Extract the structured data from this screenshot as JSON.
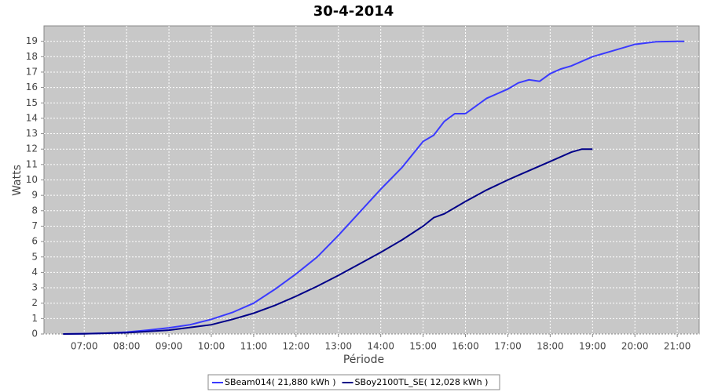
{
  "chart_data": {
    "type": "line",
    "title": "30-4-2014",
    "x_label": "Période",
    "y_label": "Watts",
    "xlim": [
      "06:03",
      "21:31"
    ],
    "xticks": [
      "07:00",
      "08:00",
      "09:00",
      "10:00",
      "11:00",
      "12:00",
      "13:00",
      "14:00",
      "15:00",
      "16:00",
      "17:00",
      "18:00",
      "19:00",
      "20:00",
      "21:00"
    ],
    "ylim": [
      0,
      20
    ],
    "yticks": [
      0,
      1,
      2,
      3,
      4,
      5,
      6,
      7,
      8,
      9,
      10,
      11,
      12,
      13,
      14,
      15,
      16,
      17,
      18,
      19
    ],
    "grid": true,
    "legend": "bottom",
    "series": [
      {
        "name": "SBeam014( 21,880 kWh )",
        "color": "#3a3aff",
        "x": [
          "06:30",
          "07:00",
          "07:30",
          "08:00",
          "08:30",
          "09:00",
          "09:30",
          "10:00",
          "10:30",
          "11:00",
          "11:30",
          "12:00",
          "12:30",
          "13:00",
          "13:30",
          "14:00",
          "14:30",
          "15:00",
          "15:15",
          "15:30",
          "15:45",
          "16:00",
          "16:30",
          "17:00",
          "17:15",
          "17:30",
          "17:45",
          "18:00",
          "18:15",
          "18:30",
          "19:00",
          "19:30",
          "20:00",
          "20:30",
          "21:00",
          "21:10"
        ],
        "values": [
          0,
          0.02,
          0.05,
          0.12,
          0.25,
          0.4,
          0.6,
          0.95,
          1.4,
          2.0,
          2.9,
          3.9,
          5.0,
          6.4,
          7.9,
          9.4,
          10.8,
          12.5,
          12.9,
          13.8,
          14.3,
          14.3,
          15.3,
          15.9,
          16.3,
          16.5,
          16.4,
          16.9,
          17.2,
          17.4,
          18.0,
          18.4,
          18.8,
          18.97,
          19.0,
          19.0
        ]
      },
      {
        "name": "SBoy2100TL_SE( 12,028 kWh )",
        "color": "#000088",
        "x": [
          "06:30",
          "07:00",
          "08:00",
          "09:00",
          "10:00",
          "10:30",
          "11:00",
          "11:30",
          "12:00",
          "12:30",
          "13:00",
          "13:30",
          "14:00",
          "14:30",
          "15:00",
          "15:15",
          "15:30",
          "16:00",
          "16:30",
          "17:00",
          "17:15",
          "17:30",
          "18:00",
          "18:30",
          "18:45",
          "19:00"
        ],
        "values": [
          0,
          0.01,
          0.08,
          0.25,
          0.6,
          0.95,
          1.35,
          1.85,
          2.45,
          3.1,
          3.8,
          4.55,
          5.3,
          6.1,
          7.0,
          7.55,
          7.8,
          8.6,
          9.35,
          10.0,
          10.3,
          10.6,
          11.2,
          11.8,
          12.0,
          12.0
        ]
      }
    ]
  }
}
